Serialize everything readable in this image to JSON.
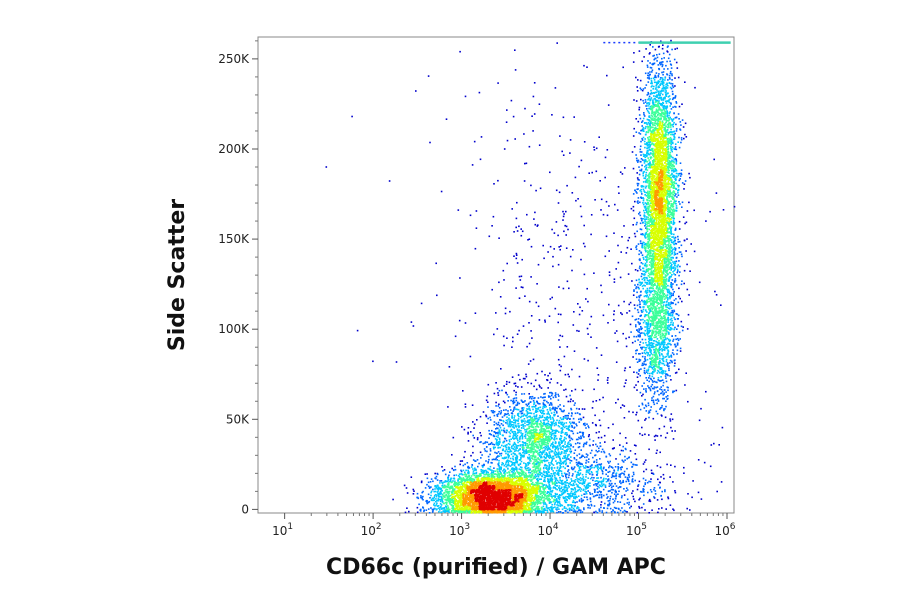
{
  "chart_data": {
    "type": "scatter",
    "subtype": "flow-cytometry density dot plot (pseudocolor)",
    "title": "",
    "xlabel": "CD66c (purified) / GAM APC",
    "ylabel": "Side Scatter",
    "x_scale": "log",
    "xlim": [
      5,
      1200000
    ],
    "ylim": [
      -2000,
      262144
    ],
    "x_ticks": [
      {
        "value": 10,
        "base": "10",
        "exp": "1"
      },
      {
        "value": 100,
        "base": "10",
        "exp": "2"
      },
      {
        "value": 1000,
        "base": "10",
        "exp": "3"
      },
      {
        "value": 10000,
        "base": "10",
        "exp": "4"
      },
      {
        "value": 100000,
        "base": "10",
        "exp": "5"
      },
      {
        "value": 1000000,
        "base": "10",
        "exp": "6"
      }
    ],
    "y_ticks": [
      {
        "value": 0,
        "label": "0"
      },
      {
        "value": 50000,
        "label": "50K"
      },
      {
        "value": 100000,
        "label": "100K"
      },
      {
        "value": 150000,
        "label": "150K"
      },
      {
        "value": 200000,
        "label": "200K"
      },
      {
        "value": 250000,
        "label": "250K"
      }
    ],
    "grid": false,
    "legend": "none",
    "colormap": [
      "#0000cc",
      "#0066ff",
      "#00c8ff",
      "#3cff9a",
      "#d8ff00",
      "#ff9a00",
      "#e00000"
    ],
    "populations": [
      {
        "center_x": 2200,
        "center_y": 8000,
        "sd_log10x": 0.32,
        "sd_y": 7000,
        "weight": 0.3
      },
      {
        "center_x": 6500,
        "center_y": 42000,
        "sd_log10x": 0.28,
        "sd_y": 12000,
        "weight": 0.12
      },
      {
        "center_x": 170000,
        "center_y": 175000,
        "sd_log10x": 0.1,
        "sd_y": 38000,
        "weight": 0.3
      },
      {
        "center_x": 150000,
        "center_y": 100000,
        "sd_log10x": 0.12,
        "sd_y": 25000,
        "weight": 0.08
      },
      {
        "center_x": 20000,
        "center_y": 15000,
        "sd_log10x": 0.5,
        "sd_y": 10000,
        "weight": 0.08
      },
      {
        "center_x": 20000,
        "center_y": 120000,
        "sd_log10x": 0.8,
        "sd_y": 70000,
        "weight": 0.04
      }
    ],
    "saturation_line": {
      "y": 259000,
      "x_from": 40000,
      "x_to": 1100000
    }
  }
}
